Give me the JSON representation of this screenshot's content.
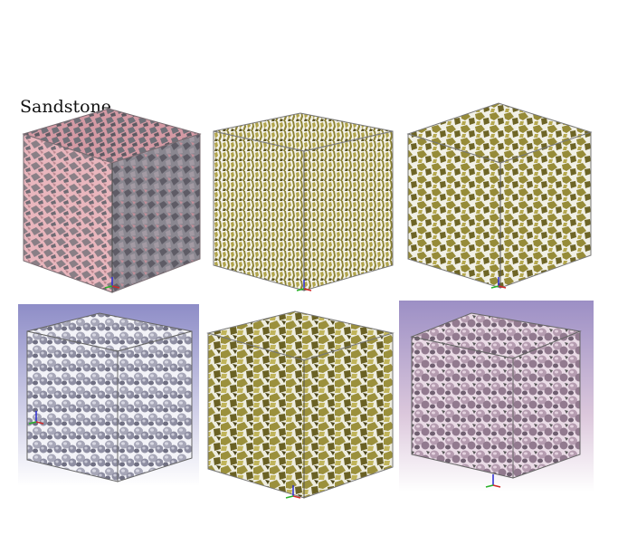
{
  "caption": "Sandstone",
  "panels": [
    {
      "id": "p1",
      "background": "#ffffff",
      "material": "pink-transparent",
      "surface": "#7e7c82"
    },
    {
      "id": "p2",
      "background": "#ffffff",
      "material": "olive-gold",
      "surface": "#8f8636"
    },
    {
      "id": "p3",
      "background": "#ffffff",
      "material": "olive-gold",
      "surface": "#8a8134"
    },
    {
      "id": "p4",
      "background": "gradient-lavender",
      "material": "grey-grains",
      "surface": "#aaaabb"
    },
    {
      "id": "p5",
      "background": "#ffffff",
      "material": "olive-gold",
      "surface": "#948a3a"
    },
    {
      "id": "p6",
      "background": "gradient-lavender-pink",
      "material": "pink-grains",
      "surface": "#b9a0b4"
    }
  ],
  "colors": {
    "pink_tint": "#e8b7bd",
    "olive": "#8f8636",
    "olive_dark": "#4b4519",
    "grey": "#9c9cae",
    "lavender_top": "#8f8ec8",
    "lavender_bottom": "#ffffff"
  }
}
